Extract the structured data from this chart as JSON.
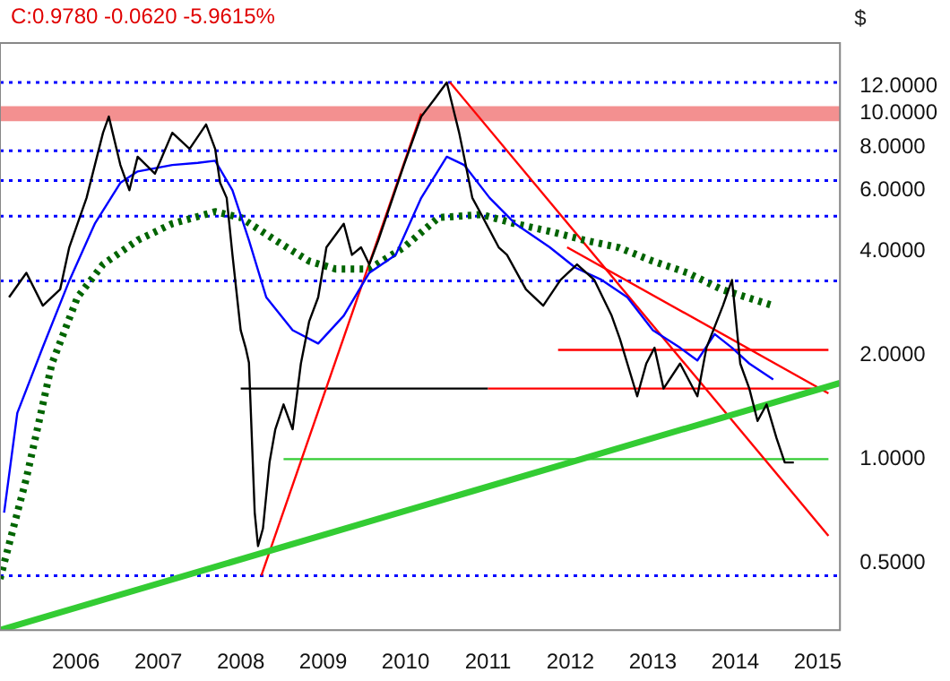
{
  "chart_data": {
    "type": "line",
    "title": "C:0.9780 -0.0620 -5.9615%",
    "ylabel": "$",
    "log": "y",
    "grid": false,
    "legend": false,
    "marker": "none",
    "xlim": [
      2005.58,
      2015.77
    ],
    "ylim": [
      0.32,
      16
    ],
    "xticks": [
      {
        "value": 2006.5,
        "label": "2006"
      },
      {
        "value": 2007.5,
        "label": "2007"
      },
      {
        "value": 2008.5,
        "label": "2008"
      },
      {
        "value": 2009.5,
        "label": "2009"
      },
      {
        "value": 2010.5,
        "label": "2010"
      },
      {
        "value": 2011.5,
        "label": "2011"
      },
      {
        "value": 2012.5,
        "label": "2012"
      },
      {
        "value": 2013.5,
        "label": "2013"
      },
      {
        "value": 2014.5,
        "label": "2014"
      },
      {
        "value": 2015.5,
        "label": "2015"
      }
    ],
    "yticks": [
      {
        "value": 0.5,
        "label": "0.5000"
      },
      {
        "value": 1,
        "label": "1.0000"
      },
      {
        "value": 2,
        "label": "2.0000"
      },
      {
        "value": 4,
        "label": "4.0000"
      },
      {
        "value": 6,
        "label": "6.0000"
      },
      {
        "value": 8,
        "label": "8.0000"
      },
      {
        "value": 10,
        "label": "10.0000"
      },
      {
        "value": 12,
        "label": "12.0000"
      }
    ],
    "series": [
      {
        "color": "#000000",
        "x": [
          2005.69,
          2005.9,
          2006.1,
          2006.31,
          2006.42,
          2006.63,
          2006.83,
          2006.9,
          2007.04,
          2007.15,
          2007.25,
          2007.46,
          2007.67,
          2007.88,
          2008.08,
          2008.19,
          2008.25,
          2008.33,
          2008.4,
          2008.5,
          2008.56,
          2008.6,
          2008.67,
          2008.71,
          2008.77,
          2008.85,
          2008.92,
          2009.02,
          2009.13,
          2009.23,
          2009.33,
          2009.44,
          2009.54,
          2009.75,
          2009.85,
          2009.96,
          2010.06,
          2010.17,
          2010.48,
          2010.69,
          2010.85,
          2011.0,
          2011.15,
          2011.21,
          2011.31,
          2011.42,
          2011.63,
          2011.73,
          2011.96,
          2012.17,
          2012.38,
          2012.58,
          2012.79,
          2013.0,
          2013.1,
          2013.31,
          2013.42,
          2013.52,
          2013.63,
          2013.83,
          2014.04,
          2014.15,
          2014.35,
          2014.46,
          2014.56,
          2014.67,
          2014.77,
          2014.88,
          2015.0,
          2015.1,
          2015.21
        ],
        "values": [
          2.94,
          3.46,
          2.78,
          3.1,
          4.1,
          5.7,
          8.8,
          9.8,
          7.1,
          6.0,
          7.5,
          6.7,
          8.8,
          7.9,
          9.3,
          7.9,
          6.3,
          5.7,
          3.9,
          2.36,
          2.1,
          1.9,
          0.7,
          0.56,
          0.63,
          0.98,
          1.22,
          1.44,
          1.22,
          1.89,
          2.5,
          2.94,
          4.1,
          4.8,
          3.9,
          4.1,
          3.66,
          4.3,
          7.1,
          9.8,
          11,
          12.3,
          8.8,
          7.5,
          5.7,
          5.1,
          4.1,
          3.9,
          3.1,
          2.78,
          3.3,
          3.66,
          3.3,
          2.6,
          2.23,
          1.52,
          1.89,
          2.1,
          1.6,
          1.89,
          1.52,
          2.1,
          2.78,
          3.3,
          1.89,
          1.6,
          1.29,
          1.44,
          1.15,
          0.978,
          0.978
        ]
      },
      {
        "color": "#0000ff",
        "x": [
          2005.63,
          2005.79,
          2006.1,
          2006.42,
          2006.73,
          2007.04,
          2007.25,
          2007.67,
          2007.98,
          2008.19,
          2008.4,
          2008.6,
          2008.81,
          2009.13,
          2009.44,
          2009.75,
          2010.06,
          2010.38,
          2010.69,
          2011.0,
          2011.21,
          2011.52,
          2011.83,
          2012.25,
          2012.56,
          2012.88,
          2013.19,
          2013.5,
          2013.83,
          2014.04,
          2014.25,
          2014.46,
          2014.67,
          2014.96
        ],
        "values": [
          0.7,
          1.36,
          2.11,
          3.28,
          4.8,
          6.3,
          6.8,
          7.1,
          7.2,
          7.3,
          6.0,
          4.3,
          2.94,
          2.36,
          2.16,
          2.6,
          3.46,
          3.9,
          5.7,
          7.5,
          7.1,
          5.7,
          4.8,
          4.1,
          3.58,
          3.3,
          2.94,
          2.36,
          2.1,
          1.93,
          2.3,
          2.1,
          1.89,
          1.7
        ]
      },
      {
        "color": "#006400",
        "line_style": "dotted",
        "x": [
          2005.58,
          2005.9,
          2006.21,
          2006.52,
          2006.83,
          2007.25,
          2007.67,
          2008.19,
          2008.5,
          2008.92,
          2009.33,
          2009.65,
          2010.06,
          2010.48,
          2010.9,
          2011.42,
          2011.83,
          2012.25,
          2012.67,
          2013.08,
          2013.5,
          2013.92,
          2014.33,
          2014.96
        ],
        "values": [
          0.45,
          0.88,
          1.89,
          2.94,
          3.66,
          4.3,
          4.8,
          5.2,
          5.0,
          4.3,
          3.74,
          3.55,
          3.55,
          4.1,
          5.0,
          5.1,
          4.8,
          4.56,
          4.3,
          4.1,
          3.74,
          3.46,
          3.1,
          2.78
        ]
      },
      {
        "type": "line",
        "color": "#33cc33",
        "x": [
          2005.58,
          2015.77
        ],
        "values": [
          0.32,
          1.66
        ]
      },
      {
        "type": "line",
        "color": "#ff0000",
        "x": [
          2008.75,
          2010.69
        ],
        "values": [
          0.46,
          10
        ]
      },
      {
        "type": "line",
        "color": "#ff0000",
        "x": [
          2011.04,
          2015.63
        ],
        "values": [
          12.3,
          0.6
        ]
      },
      {
        "type": "line",
        "color": "#ff0000",
        "x": [
          2012.46,
          2015.63
        ],
        "values": [
          4.1,
          1.55
        ]
      },
      {
        "type": "line",
        "color": "#ff0000",
        "x": [
          2012.35,
          2015.63
        ],
        "values": [
          2.07,
          2.07
        ]
      },
      {
        "type": "line",
        "color": "#ff0000",
        "x": [
          2011.5,
          2015.63
        ],
        "values": [
          1.6,
          1.6
        ]
      },
      {
        "type": "line",
        "color": "#000000",
        "x": [
          2008.5,
          2011.5
        ],
        "values": [
          1.6,
          1.6
        ]
      },
      {
        "type": "line",
        "color": "#33cc33",
        "x": [
          2009.02,
          2015.63
        ],
        "values": [
          1.0,
          1.0
        ]
      }
    ],
    "ref_lines": [
      {
        "axis": "y",
        "value": 12.3,
        "color": "#0000ff",
        "line_style": "dotted"
      },
      {
        "axis": "y",
        "value": 7.8,
        "color": "#0000ff",
        "line_style": "dotted"
      },
      {
        "axis": "y",
        "value": 6.4,
        "color": "#0000ff",
        "line_style": "dotted"
      },
      {
        "axis": "y",
        "value": 5.05,
        "color": "#0000ff",
        "line_style": "dotted"
      },
      {
        "axis": "y",
        "value": 3.28,
        "color": "#0000ff",
        "line_style": "dotted"
      },
      {
        "axis": "y",
        "value": 0.46,
        "color": "#0000ff",
        "line_style": "dotted"
      }
    ],
    "bands": [
      {
        "axis": "y",
        "from": 9.5,
        "to": 10.5,
        "color": "#f39090"
      }
    ]
  }
}
